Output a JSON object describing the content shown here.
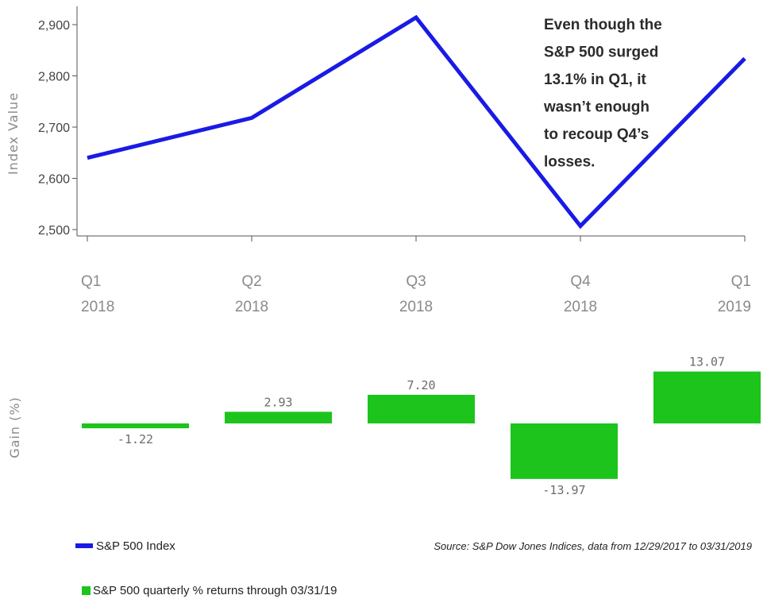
{
  "chart_data": [
    {
      "type": "line",
      "ylabel": "Index Value",
      "categories": [
        [
          "Q1",
          "2018"
        ],
        [
          "Q2",
          "2018"
        ],
        [
          "Q3",
          "2018"
        ],
        [
          "Q4",
          "2018"
        ],
        [
          "Q1",
          "2019"
        ]
      ],
      "series": [
        {
          "name": "S&P 500 Index",
          "values": [
            2640,
            2718,
            2914,
            2507,
            2834
          ],
          "color": "#1a1ae6"
        }
      ],
      "ylim": [
        2480,
        2920
      ],
      "yticks": [
        2500,
        2600,
        2700,
        2800,
        2900
      ],
      "ytick_labels": [
        "2,500",
        "2,600",
        "2,700",
        "2,800",
        "2,900"
      ],
      "annotation": [
        "Even though the",
        "S&P 500 surged",
        "13.1% in Q1, it",
        "wasn’t enough",
        "to recoup Q4’s",
        "losses."
      ],
      "grid": false
    },
    {
      "type": "bar",
      "ylabel": "Gain (%)",
      "series": [
        {
          "name": "S&P 500 quarterly % returns through 03/31/19",
          "values": [
            -1.22,
            2.93,
            7.2,
            -13.97,
            13.07
          ],
          "color": "#1cc41c"
        }
      ],
      "value_labels": [
        "-1.22",
        "2.93",
        "7.20",
        "-13.97",
        "13.07"
      ],
      "grid": false
    }
  ],
  "legend": {
    "items": [
      {
        "label": "S&P 500 Index",
        "marker": "line",
        "color": "#1a1ae6"
      },
      {
        "label": "S&P 500 quarterly % returns through 03/31/19",
        "marker": "square",
        "color": "#1cc41c"
      }
    ]
  },
  "source": "Source: S&P Dow Jones Indices, data from 12/29/2017 to 03/31/2019"
}
